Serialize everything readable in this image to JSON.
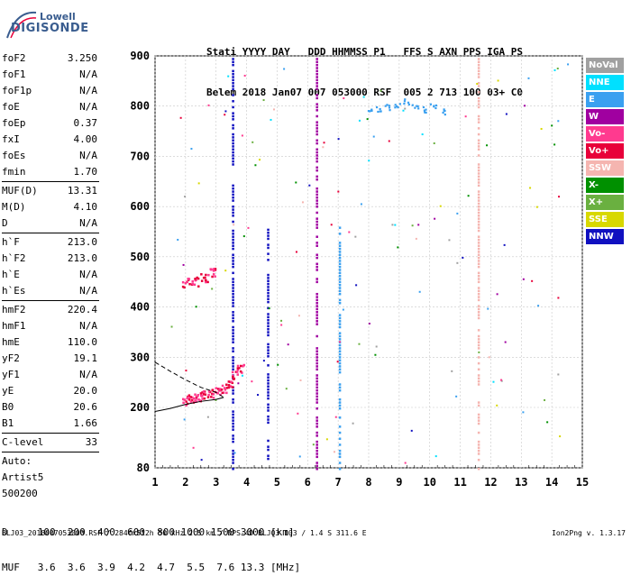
{
  "logo": {
    "line1": "Lowell",
    "line2": "DIGISONDE"
  },
  "header": {
    "line1": "Stati YYYY DAY   DDD HHMMSS P1   FFS S AXN PPS IGA PS",
    "line2": "Belem 2018 Jan07 007 053000 RSF  005 2 713 100 03+ C0"
  },
  "params": [
    {
      "name": "foF2",
      "value": "3.250"
    },
    {
      "name": "foF1",
      "value": "N/A"
    },
    {
      "name": "foF1p",
      "value": "N/A"
    },
    {
      "name": "foE",
      "value": "N/A"
    },
    {
      "name": "foEp",
      "value": "0.37"
    },
    {
      "name": "fxI",
      "value": "4.00"
    },
    {
      "name": "foEs",
      "value": "N/A"
    },
    {
      "name": "fmin",
      "value": "1.70"
    },
    {
      "name": "MUF(D)",
      "value": "13.31",
      "sep": true
    },
    {
      "name": "M(D)",
      "value": "4.10"
    },
    {
      "name": "D",
      "value": "N/A"
    },
    {
      "name": "h`F",
      "value": "213.0",
      "sep": true
    },
    {
      "name": "h`F2",
      "value": "213.0"
    },
    {
      "name": "h`E",
      "value": "N/A"
    },
    {
      "name": "h`Es",
      "value": "N/A"
    },
    {
      "name": "hmF2",
      "value": "220.4",
      "sep": true
    },
    {
      "name": "hmF1",
      "value": "N/A"
    },
    {
      "name": "hmE",
      "value": "110.0"
    },
    {
      "name": "yF2",
      "value": "19.1"
    },
    {
      "name": "yF1",
      "value": "N/A"
    },
    {
      "name": "yE",
      "value": "20.0"
    },
    {
      "name": "B0",
      "value": "20.6"
    },
    {
      "name": "B1",
      "value": "1.66"
    },
    {
      "name": "C-level",
      "value": "33",
      "sep": true
    },
    {
      "name": "Auto:",
      "value": "",
      "sep": true
    },
    {
      "name": "Artist5",
      "value": ""
    },
    {
      "name": "500200",
      "value": ""
    }
  ],
  "legend": [
    {
      "label": "NoVal",
      "color": "#a0a0a0"
    },
    {
      "label": "NNE",
      "color": "#00e0ff"
    },
    {
      "label": "E",
      "color": "#3aa0f0"
    },
    {
      "label": "W",
      "color": "#a000a0"
    },
    {
      "label": "Vo-",
      "color": "#ff3a8f"
    },
    {
      "label": "Vo+",
      "color": "#e8003a"
    },
    {
      "label": "SSW",
      "color": "#f5b5b0"
    },
    {
      "label": "X-",
      "color": "#009000"
    },
    {
      "label": "X+",
      "color": "#6ab040"
    },
    {
      "label": "SSE",
      "color": "#d8d800"
    },
    {
      "label": "NNW",
      "color": "#1010c0"
    }
  ],
  "dmuf": {
    "line1": "D     100  200  400  600  800 1000 1500 3000 [km]",
    "line2": "MUF   3.6  3.6  3.9  4.2  4.7  5.5  7.6 13.3 [MHz]"
  },
  "footer": "BLJ03_2018007053000.RSF / 284fx512h 50 kHz 2.5 km / DPS-4D BLJ03 103 / 1.4 S 311.6 E",
  "version": "Ion2Png v. 1.3.17",
  "chart_data": {
    "type": "scatter",
    "x_ticks": [
      "1",
      "2",
      "3",
      "4",
      "5",
      "6",
      "7",
      "8",
      "9",
      "10",
      "11",
      "12",
      "13",
      "14",
      "15"
    ],
    "y_ticks": [
      "80",
      "200",
      "300",
      "400",
      "500",
      "600",
      "700",
      "800",
      "900"
    ],
    "xlim": [
      1,
      15
    ],
    "ylim": [
      80,
      900
    ],
    "grid": true,
    "legend_position": "right",
    "dense_traces": [
      {
        "x": 3.55,
        "y0": 80,
        "y1": 900,
        "color": "#1010c0"
      },
      {
        "x": 4.7,
        "y0": 100,
        "y1": 560,
        "color": "#1010c0"
      },
      {
        "x": 6.3,
        "y0": 80,
        "y1": 900,
        "color": "#a000a0"
      },
      {
        "x": 7.05,
        "y0": 80,
        "y1": 560,
        "color": "#3aa0f0"
      },
      {
        "x": 11.6,
        "y0": 80,
        "y1": 900,
        "color": "#f5b5b0"
      }
    ],
    "f_trace": {
      "color": "#e8003a",
      "points": [
        [
          2.0,
          215
        ],
        [
          2.2,
          220
        ],
        [
          2.4,
          222
        ],
        [
          2.6,
          225
        ],
        [
          2.8,
          230
        ],
        [
          3.0,
          232
        ],
        [
          3.2,
          240
        ],
        [
          3.4,
          250
        ],
        [
          3.6,
          265
        ],
        [
          3.8,
          280
        ]
      ]
    },
    "f_trace2": {
      "color": "#e8003a",
      "points": [
        [
          2.0,
          450
        ],
        [
          2.3,
          452
        ],
        [
          2.6,
          460
        ],
        [
          2.9,
          470
        ]
      ]
    },
    "e_cluster": {
      "color": "#3aa0f0",
      "points": [
        [
          8.0,
          790
        ],
        [
          8.3,
          795
        ],
        [
          8.6,
          800
        ],
        [
          8.9,
          805
        ],
        [
          9.2,
          810
        ],
        [
          9.5,
          800
        ],
        [
          9.8,
          795
        ],
        [
          10.1,
          800
        ],
        [
          10.4,
          790
        ]
      ]
    },
    "profile_solid": [
      [
        1.0,
        192
      ],
      [
        1.5,
        198
      ],
      [
        2.0,
        206
      ],
      [
        2.5,
        212
      ],
      [
        3.0,
        216
      ],
      [
        3.25,
        220
      ]
    ],
    "profile_dashed": [
      [
        1.0,
        290
      ],
      [
        1.5,
        272
      ],
      [
        2.0,
        255
      ],
      [
        2.5,
        240
      ],
      [
        3.0,
        230
      ],
      [
        3.25,
        220
      ]
    ]
  }
}
